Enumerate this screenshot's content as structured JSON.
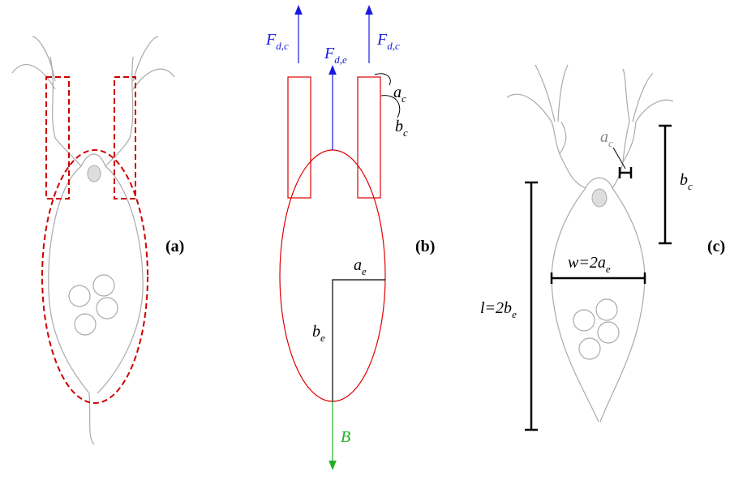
{
  "panels": {
    "a": {
      "label": "(a)"
    },
    "b": {
      "label": "(b)",
      "force_left": {
        "text": "F",
        "sub": "d,c"
      },
      "force_center": {
        "text": "F",
        "sub": "d,e"
      },
      "force_right": {
        "text": "F",
        "sub": "d,c"
      },
      "a_c": {
        "text": "a",
        "sub": "c"
      },
      "b_c": {
        "text": "b",
        "sub": "c"
      },
      "a_e": {
        "text": "a",
        "sub": "e"
      },
      "b_e": {
        "text": "b",
        "sub": "e"
      },
      "buoyancy": "B"
    },
    "c": {
      "label": "(c)",
      "a_c": {
        "text": "a",
        "sub": "c"
      },
      "b_c": {
        "text": "b",
        "sub": "c"
      },
      "width": {
        "text": "w=2a",
        "sub": "e"
      },
      "length": {
        "text": "l=2b",
        "sub": "e"
      }
    }
  }
}
